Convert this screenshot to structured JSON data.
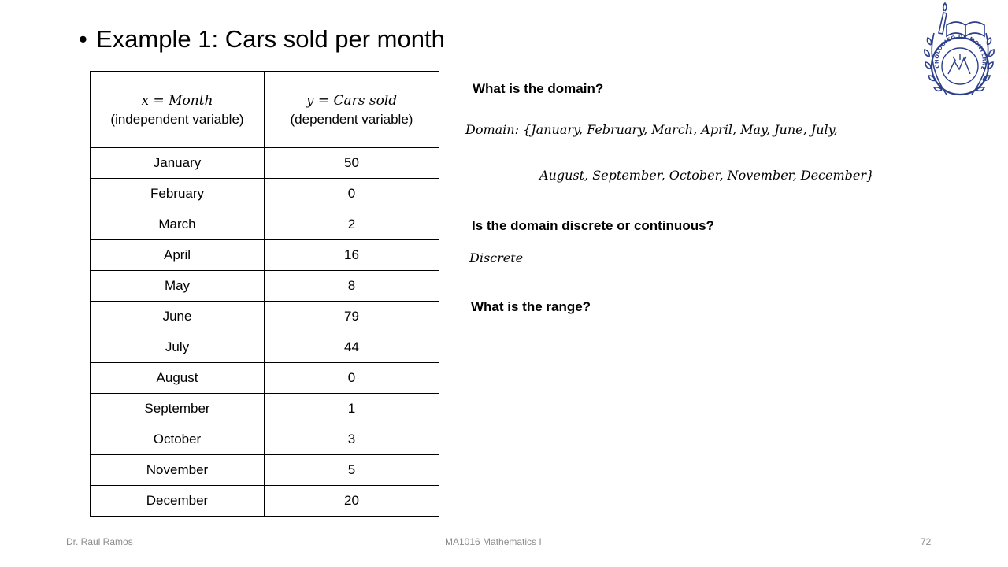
{
  "slide": {
    "title": "Example 1: Cars sold per month",
    "bullet": "•"
  },
  "table": {
    "headers": [
      {
        "math": "x = Month",
        "label": "(independent variable)"
      },
      {
        "math": "y = Cars sold",
        "label": "(dependent variable)"
      }
    ],
    "rows": [
      [
        "January",
        "50"
      ],
      [
        "February",
        "0"
      ],
      [
        "March",
        "2"
      ],
      [
        "April",
        "16"
      ],
      [
        "May",
        "8"
      ],
      [
        "June",
        "79"
      ],
      [
        "July",
        "44"
      ],
      [
        "August",
        "0"
      ],
      [
        "September",
        "1"
      ],
      [
        "October",
        "3"
      ],
      [
        "November",
        "5"
      ],
      [
        "December",
        "20"
      ]
    ]
  },
  "questions": {
    "q1": "What is the domain?",
    "a1_line1": "Domain: {January, February, March, April, May, June, July,",
    "a1_line2": "August, September, October, November, December}",
    "q2": "Is the domain discrete or continuous?",
    "a2": "Discrete",
    "q3": "What is the range?"
  },
  "logo": {
    "icon": "tec-monterrey-seal-icon",
    "text": "TECNOLOGICO DE MONTERREY",
    "color": "#2b3f8c"
  },
  "footer": {
    "author": "Dr. Raul Ramos",
    "course": "MA1016 Mathematics I",
    "page": "72"
  }
}
